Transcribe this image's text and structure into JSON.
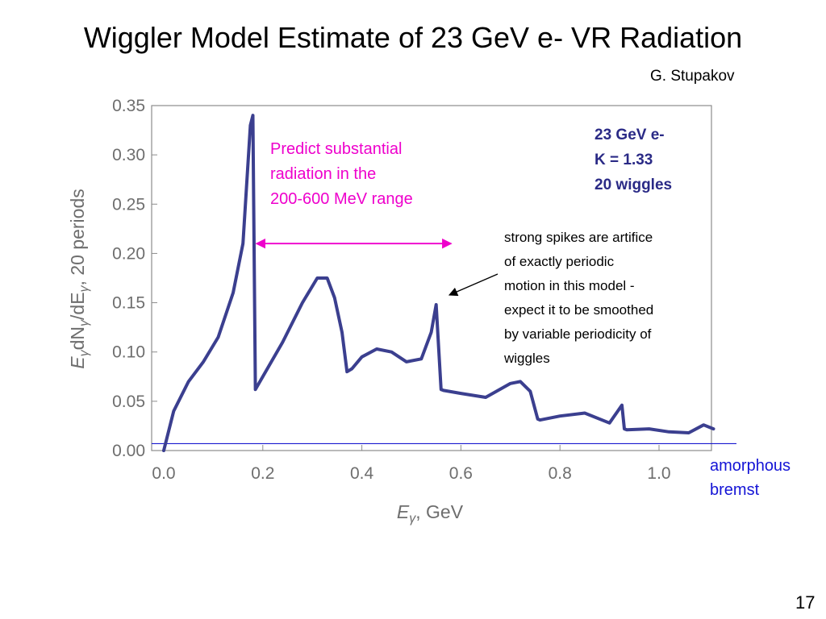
{
  "title": "Wiggler Model Estimate of 23 GeV e- VR Radiation",
  "author": "G. Stupakov",
  "page_number": "17",
  "annotations": {
    "prediction": [
      "Predict substantial",
      "radiation in the",
      "200-600 MeV range"
    ],
    "params": [
      "23 GeV e-",
      "K = 1.33",
      "20 wiggles"
    ],
    "spikes_note": [
      "strong spikes are artifice",
      "of exactly periodic",
      "motion in this model -",
      "expect it to be smoothed",
      "by variable periodicity of",
      "wiggles"
    ],
    "bremst": [
      "amorphous",
      "bremst"
    ]
  },
  "colors": {
    "curve": "#3b3f8f",
    "magenta": "#ee00cc",
    "params_text": "#2a2a86",
    "bremst_line": "#1a1ad0",
    "axis": "#8c8c8c"
  },
  "chart_data": {
    "type": "line",
    "xlabel": "Eγ, GeV",
    "ylabel": "EγdNγ/dEγ,  20 periods",
    "xlim": [
      -0.01,
      1.12
    ],
    "ylim": [
      0,
      0.35
    ],
    "x_ticks": [
      "0.0",
      "0.2",
      "0.4",
      "0.6",
      "0.8",
      "1.0"
    ],
    "y_ticks": [
      "0.00",
      "0.05",
      "0.10",
      "0.15",
      "0.20",
      "0.25",
      "0.30",
      "0.35"
    ],
    "grid": false,
    "series": [
      {
        "x": [
          0.0,
          0.02,
          0.05,
          0.08,
          0.11,
          0.14,
          0.16,
          0.175,
          0.18,
          0.185,
          0.2,
          0.24,
          0.28,
          0.31,
          0.33,
          0.345,
          0.36,
          0.37,
          0.38,
          0.4,
          0.43,
          0.46,
          0.49,
          0.52,
          0.54,
          0.55,
          0.56,
          0.565,
          0.6,
          0.65,
          0.7,
          0.72,
          0.74,
          0.755,
          0.76,
          0.8,
          0.85,
          0.9,
          0.925,
          0.93,
          0.935,
          0.98,
          1.02,
          1.06,
          1.09,
          1.11
        ],
        "y": [
          0.0,
          0.04,
          0.07,
          0.09,
          0.115,
          0.16,
          0.21,
          0.33,
          0.34,
          0.062,
          0.075,
          0.11,
          0.15,
          0.175,
          0.175,
          0.155,
          0.12,
          0.08,
          0.083,
          0.095,
          0.103,
          0.1,
          0.09,
          0.093,
          0.12,
          0.148,
          0.062,
          0.061,
          0.058,
          0.054,
          0.068,
          0.07,
          0.06,
          0.032,
          0.031,
          0.035,
          0.038,
          0.028,
          0.046,
          0.022,
          0.021,
          0.022,
          0.019,
          0.018,
          0.026,
          0.022
        ]
      }
    ],
    "bremst_level": 0.007,
    "prediction_range": [
      0.2,
      0.6
    ]
  }
}
